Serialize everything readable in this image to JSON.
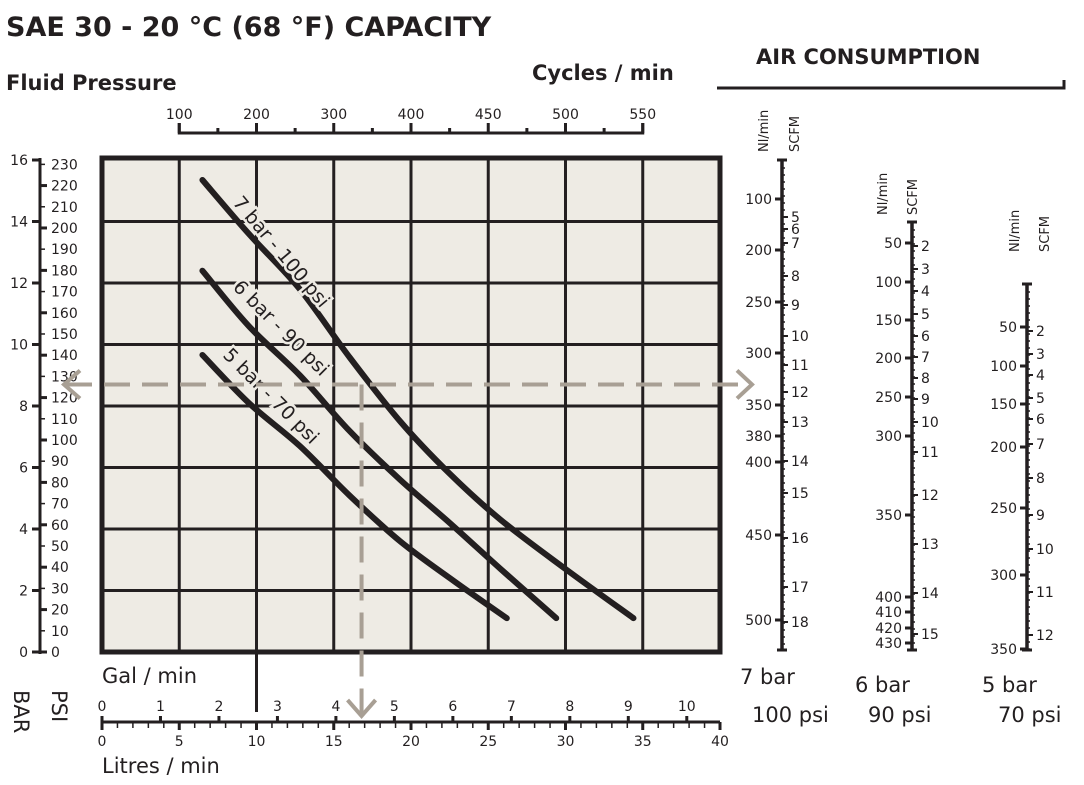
{
  "title": "SAE 30 - 20 °C (68 °F) CAPACITY",
  "fluid_pressure_label": "Fluid Pressure",
  "cycles_label": "Cycles / min",
  "air_consumption_label": "AIR CONSUMPTION",
  "gal_label": "Gal / min",
  "litres_label": "Litres / min",
  "bar_label": "BAR",
  "psi_label": "PSI",
  "colors": {
    "plot_bg": "#eeebe4",
    "ink": "#231f20",
    "guide_arrow": "#a89f94"
  },
  "chart_data": {
    "type": "line",
    "title": "SAE 30 - 20 °C (68 °F) CAPACITY",
    "xlabel": "Litres / min",
    "ylabel": "Fluid Pressure",
    "xlim": [
      0,
      40
    ],
    "ylim": [
      0,
      16
    ],
    "grid": true,
    "x_ticks_litres": [
      0,
      5,
      10,
      15,
      20,
      25,
      30,
      35,
      40
    ],
    "x_ticks_gal": [
      0,
      1,
      2,
      3,
      4,
      5,
      6,
      7,
      8,
      9,
      10
    ],
    "y_ticks_bar": [
      0,
      2,
      4,
      6,
      8,
      10,
      12,
      14,
      16
    ],
    "y_ticks_psi": [
      0,
      10,
      20,
      30,
      40,
      50,
      60,
      70,
      80,
      90,
      100,
      110,
      120,
      130,
      140,
      150,
      160,
      170,
      180,
      190,
      200,
      210,
      220,
      230
    ],
    "cycles_ticks": [
      {
        "cycles": "100",
        "litres": 5
      },
      {
        "cycles": "200",
        "litres": 10
      },
      {
        "cycles": "300",
        "litres": 15
      },
      {
        "cycles": "400",
        "litres": 20
      },
      {
        "cycles": "450",
        "litres": 25
      },
      {
        "cycles": "500",
        "litres": 30
      },
      {
        "cycles": "550",
        "litres": 35
      }
    ],
    "series": [
      {
        "name": "7 bar - 100 psi",
        "points": [
          [
            6.5,
            15.35
          ],
          [
            9.5,
            13.6
          ],
          [
            12.8,
            11.8
          ],
          [
            16,
            9.6
          ],
          [
            19.3,
            7.5
          ],
          [
            22.5,
            5.8
          ],
          [
            25.8,
            4.3
          ],
          [
            30,
            2.7
          ],
          [
            34.4,
            1.1
          ]
        ]
      },
      {
        "name": "6 bar - 90 psi",
        "points": [
          [
            6.5,
            12.4
          ],
          [
            9.5,
            10.6
          ],
          [
            12.8,
            9.0
          ],
          [
            16,
            7.2
          ],
          [
            19.3,
            5.6
          ],
          [
            22.5,
            4.2
          ],
          [
            25.8,
            2.7
          ],
          [
            29.4,
            1.1
          ]
        ]
      },
      {
        "name": "5 bar - 70 psi",
        "points": [
          [
            6.5,
            9.66
          ],
          [
            9.5,
            8.1
          ],
          [
            12.8,
            6.7
          ],
          [
            16,
            5.1
          ],
          [
            19.3,
            3.6
          ],
          [
            22.8,
            2.3
          ],
          [
            26.2,
            1.1
          ]
        ]
      }
    ],
    "example_guide": {
      "pressure_bar": 8.7,
      "flow_litres": 16.8
    }
  },
  "air_consumption": {
    "nl_header": "Nl/min",
    "scfm_header": "SCFM",
    "scales": [
      {
        "bar_label": "7 bar",
        "psi_label": "100 psi",
        "nl": [
          "100",
          "200",
          "250",
          "300",
          "350",
          "380",
          "400",
          "450",
          "500"
        ],
        "scfm": [
          "5",
          "6",
          "7",
          "8",
          "9",
          "10",
          "11",
          "12",
          "13",
          "14",
          "15",
          "16",
          "17",
          "18"
        ]
      },
      {
        "bar_label": "6 bar",
        "psi_label": "90 psi",
        "nl": [
          "50",
          "100",
          "150",
          "200",
          "250",
          "300",
          "350",
          "400",
          "410",
          "420",
          "430"
        ],
        "scfm": [
          "2",
          "3",
          "4",
          "5",
          "6",
          "7",
          "8",
          "9",
          "10",
          "11",
          "12",
          "13",
          "14",
          "15"
        ]
      },
      {
        "bar_label": "5 bar",
        "psi_label": "70 psi",
        "nl": [
          "50",
          "100",
          "150",
          "200",
          "250",
          "300",
          "350"
        ],
        "scfm": [
          "2",
          "3",
          "4",
          "5",
          "6",
          "7",
          "8",
          "9",
          "10",
          "11",
          "12"
        ]
      }
    ]
  }
}
